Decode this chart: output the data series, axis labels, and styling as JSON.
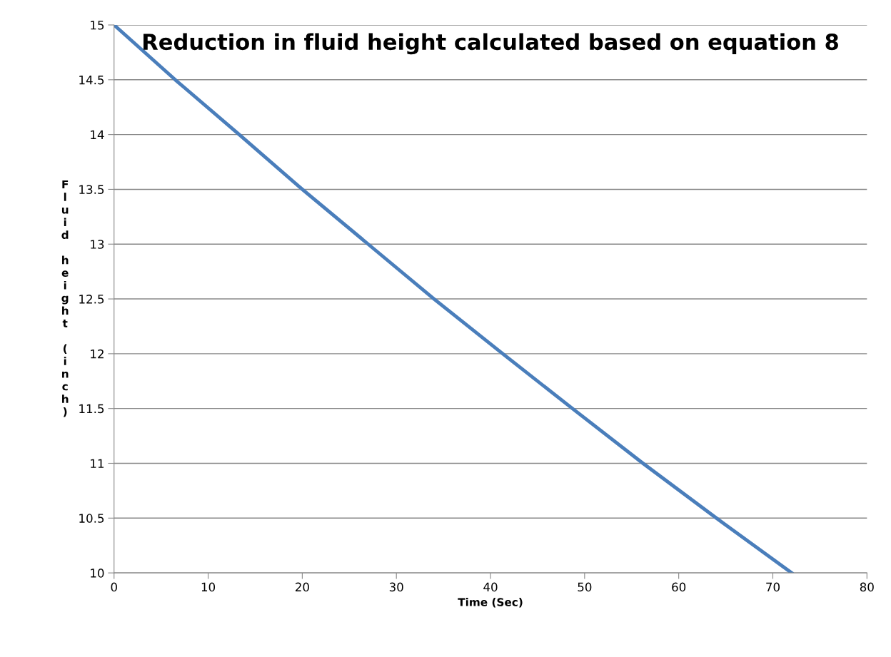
{
  "chart_data": {
    "type": "line",
    "title": "Reduction in fluid height calculated based on equation 8",
    "xlabel": "Time (Sec)",
    "ylabel": "Fluid height (inch)",
    "x": [
      0,
      6.5,
      13.3,
      20,
      27,
      34,
      41.3,
      48.7,
      56.2,
      64,
      72
    ],
    "series": [
      {
        "color": "#4a7ebb",
        "values": [
          15,
          14.5,
          14,
          13.5,
          13,
          12.5,
          12,
          11.5,
          11,
          10.5,
          10
        ]
      }
    ],
    "xlim": [
      0,
      80
    ],
    "xticks": [
      0,
      10,
      20,
      30,
      40,
      50,
      60,
      70,
      80
    ],
    "ylim": [
      10,
      15
    ],
    "yticks": [
      10,
      10.5,
      11,
      11.5,
      12,
      12.5,
      13,
      13.5,
      14,
      14.5,
      15
    ],
    "grid": "y",
    "legend": false,
    "marker": "none",
    "line_style": "solid"
  }
}
